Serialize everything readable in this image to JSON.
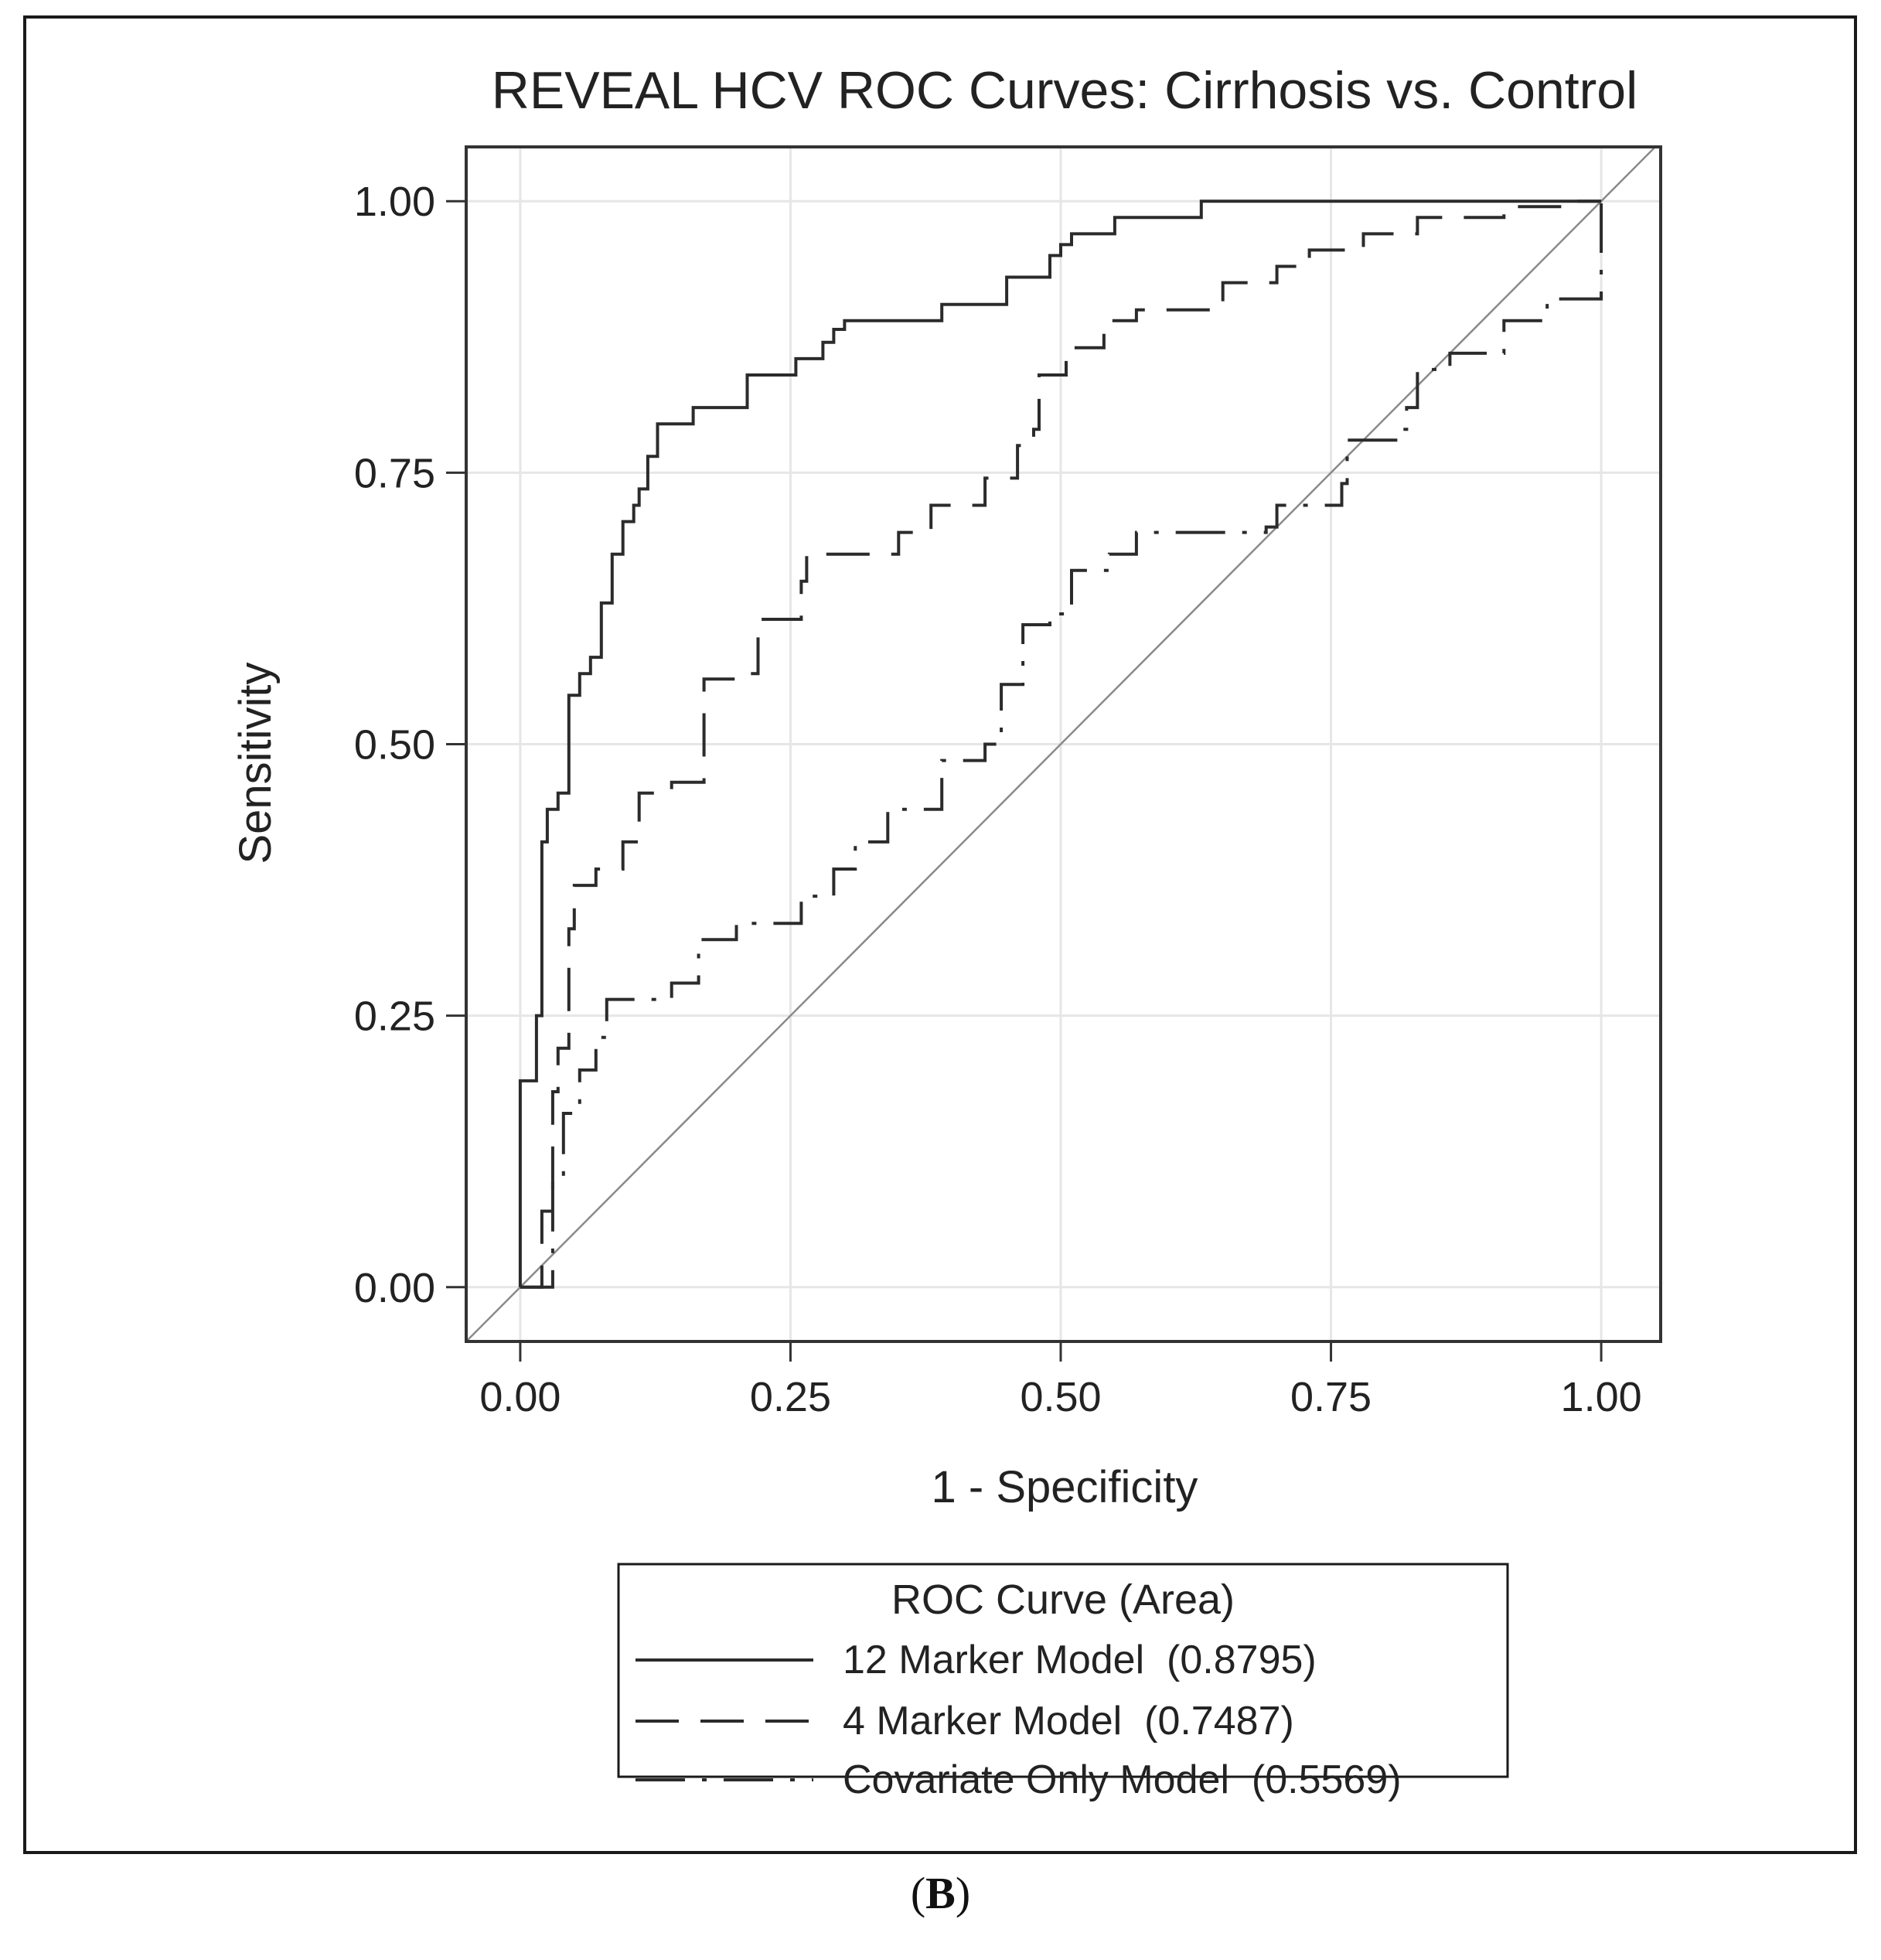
{
  "panel_label": {
    "open": "(",
    "letter": "B",
    "close": ")"
  },
  "chart_data": {
    "type": "line",
    "title": "REVEAL HCV ROC Curves: Cirrhosis vs. Control",
    "xlabel": "1 - Specificity",
    "ylabel": "Sensitivity",
    "xlim": [
      -0.05,
      1.055
    ],
    "ylim": [
      -0.05,
      1.05
    ],
    "xticks": [
      0,
      0.25,
      0.5,
      0.75,
      1
    ],
    "yticks": [
      0,
      0.25,
      0.5,
      0.75,
      1
    ],
    "xtick_labels": [
      "0.00",
      "0.25",
      "0.50",
      "0.75",
      "1.00"
    ],
    "ytick_labels": [
      "0.00",
      "0.25",
      "0.50",
      "0.75",
      "1.00"
    ],
    "grid": true,
    "reference_line": {
      "name": "Chance",
      "x": [
        -0.05,
        1.05
      ],
      "y": [
        -0.05,
        1.05
      ]
    },
    "legend": {
      "title": "ROC Curve (Area)",
      "placement": "bottom",
      "entries": [
        "12 Marker Model  (0.8795)",
        "4 Marker Model  (0.7487)",
        "Covariate Only Model  (0.5569)"
      ]
    },
    "series": [
      {
        "name": "12 Marker Model",
        "auc": 0.8795,
        "line_style": "solid",
        "x": [
          0,
          0,
          0.015,
          0.015,
          0.02,
          0.02,
          0.025,
          0.025,
          0.035,
          0.035,
          0.045,
          0.045,
          0.055,
          0.055,
          0.065,
          0.065,
          0.075,
          0.075,
          0.085,
          0.085,
          0.095,
          0.095,
          0.105,
          0.105,
          0.11,
          0.11,
          0.118,
          0.118,
          0.127,
          0.127,
          0.16,
          0.16,
          0.21,
          0.21,
          0.255,
          0.255,
          0.28,
          0.28,
          0.29,
          0.29,
          0.3,
          0.3,
          0.39,
          0.39,
          0.45,
          0.45,
          0.49,
          0.49,
          0.5,
          0.5,
          0.51,
          0.51,
          0.55,
          0.55,
          0.63,
          0.63,
          1.0
        ],
        "y": [
          0,
          0.19,
          0.19,
          0.25,
          0.25,
          0.41,
          0.41,
          0.44,
          0.44,
          0.455,
          0.455,
          0.545,
          0.545,
          0.565,
          0.565,
          0.58,
          0.58,
          0.63,
          0.63,
          0.675,
          0.675,
          0.705,
          0.705,
          0.72,
          0.72,
          0.735,
          0.735,
          0.765,
          0.765,
          0.795,
          0.795,
          0.81,
          0.81,
          0.84,
          0.84,
          0.855,
          0.855,
          0.87,
          0.87,
          0.882,
          0.882,
          0.89,
          0.89,
          0.905,
          0.905,
          0.93,
          0.93,
          0.95,
          0.95,
          0.96,
          0.96,
          0.97,
          0.97,
          0.985,
          0.985,
          1.0,
          1.0
        ]
      },
      {
        "name": "4 Marker Model",
        "auc": 0.7487,
        "line_style": "long-dash",
        "x": [
          0,
          0.02,
          0.02,
          0.03,
          0.03,
          0.035,
          0.035,
          0.045,
          0.045,
          0.05,
          0.05,
          0.07,
          0.07,
          0.095,
          0.095,
          0.11,
          0.11,
          0.14,
          0.14,
          0.17,
          0.17,
          0.2,
          0.2,
          0.22,
          0.22,
          0.26,
          0.26,
          0.265,
          0.265,
          0.35,
          0.35,
          0.38,
          0.38,
          0.43,
          0.43,
          0.46,
          0.46,
          0.475,
          0.475,
          0.48,
          0.48,
          0.505,
          0.505,
          0.54,
          0.54,
          0.57,
          0.57,
          0.65,
          0.65,
          0.7,
          0.7,
          0.73,
          0.73,
          0.78,
          0.78,
          0.83,
          0.83,
          0.91,
          0.91,
          0.97,
          0.97,
          1.0
        ],
        "y": [
          0,
          0,
          0.07,
          0.07,
          0.18,
          0.18,
          0.22,
          0.22,
          0.33,
          0.33,
          0.37,
          0.37,
          0.385,
          0.385,
          0.41,
          0.41,
          0.455,
          0.455,
          0.465,
          0.465,
          0.56,
          0.56,
          0.565,
          0.565,
          0.615,
          0.615,
          0.65,
          0.65,
          0.675,
          0.675,
          0.695,
          0.695,
          0.72,
          0.72,
          0.745,
          0.745,
          0.775,
          0.775,
          0.79,
          0.79,
          0.84,
          0.84,
          0.865,
          0.865,
          0.89,
          0.89,
          0.9,
          0.9,
          0.925,
          0.925,
          0.94,
          0.94,
          0.955,
          0.955,
          0.97,
          0.97,
          0.985,
          0.985,
          0.995,
          0.995,
          1.0,
          1.0
        ]
      },
      {
        "name": "Covariate Only Model",
        "auc": 0.5569,
        "line_style": "dash-dot",
        "x": [
          0,
          0.03,
          0.03,
          0.04,
          0.04,
          0.055,
          0.055,
          0.07,
          0.07,
          0.08,
          0.08,
          0.14,
          0.14,
          0.165,
          0.165,
          0.2,
          0.2,
          0.26,
          0.26,
          0.29,
          0.29,
          0.31,
          0.31,
          0.34,
          0.34,
          0.39,
          0.39,
          0.43,
          0.43,
          0.445,
          0.445,
          0.465,
          0.465,
          0.49,
          0.49,
          0.51,
          0.51,
          0.545,
          0.545,
          0.57,
          0.57,
          0.69,
          0.69,
          0.7,
          0.7,
          0.76,
          0.76,
          0.765,
          0.765,
          0.81,
          0.81,
          0.82,
          0.82,
          0.83,
          0.83,
          0.86,
          0.86,
          0.91,
          0.91,
          0.95,
          0.95,
          1.0,
          1.0
        ],
        "y": [
          0,
          0,
          0.1,
          0.1,
          0.16,
          0.16,
          0.2,
          0.2,
          0.23,
          0.23,
          0.265,
          0.265,
          0.28,
          0.28,
          0.32,
          0.32,
          0.335,
          0.335,
          0.36,
          0.36,
          0.385,
          0.385,
          0.41,
          0.41,
          0.44,
          0.44,
          0.485,
          0.485,
          0.5,
          0.5,
          0.555,
          0.555,
          0.61,
          0.61,
          0.62,
          0.62,
          0.66,
          0.66,
          0.675,
          0.675,
          0.695,
          0.695,
          0.7,
          0.7,
          0.72,
          0.72,
          0.74,
          0.74,
          0.78,
          0.78,
          0.79,
          0.79,
          0.81,
          0.81,
          0.845,
          0.845,
          0.86,
          0.86,
          0.89,
          0.89,
          0.91,
          0.91,
          1.0
        ]
      }
    ]
  }
}
